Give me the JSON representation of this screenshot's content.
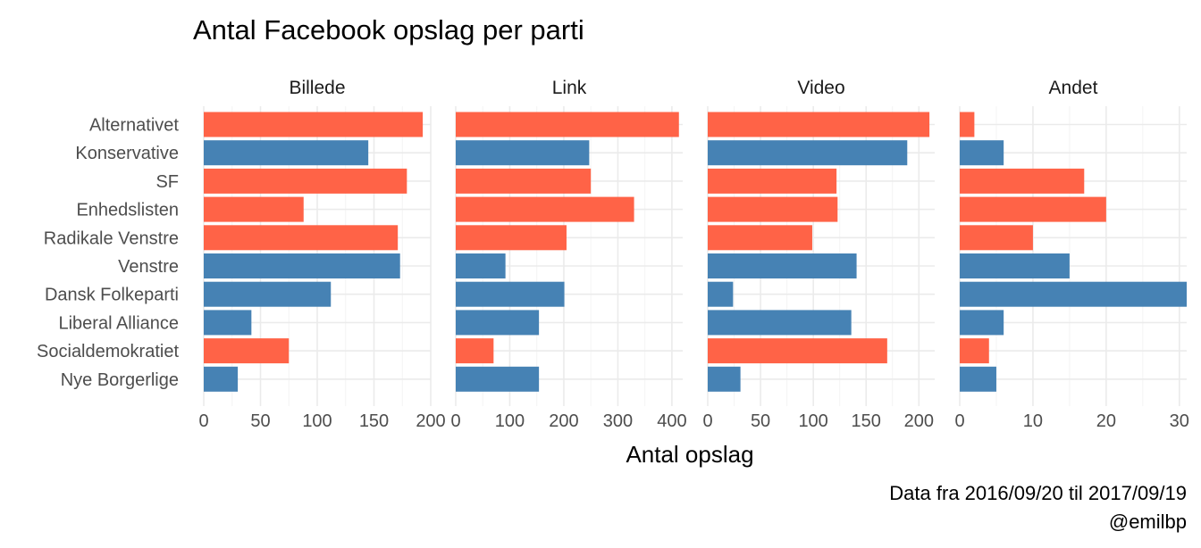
{
  "chart_data": {
    "type": "bar",
    "orientation": "horizontal",
    "title": "Antal Facebook opslag per parti",
    "xlabel": "Antal opslag",
    "ylabel": "",
    "caption": [
      "Data fra 2016/09/20 til 2017/09/19",
      "@emilbp"
    ],
    "categories": [
      "Alternativet",
      "Konservative",
      "SF",
      "Enhedslisten",
      "Radikale Venstre",
      "Venstre",
      "Dansk Folkeparti",
      "Liberal Alliance",
      "Socialdemokratiet",
      "Nye Borgerlige"
    ],
    "bar_group": [
      "opposition",
      "government",
      "opposition",
      "opposition",
      "opposition",
      "government",
      "government",
      "government",
      "opposition",
      "government"
    ],
    "colors": {
      "opposition": "#ff6347",
      "government": "#4682b4"
    },
    "grid": true,
    "legend": "none",
    "facets": [
      {
        "name": "Billede",
        "xlim": [
          0,
          200
        ],
        "ticks": [
          0,
          50,
          100,
          150,
          200
        ],
        "values": [
          193,
          145,
          179,
          88,
          171,
          173,
          112,
          42,
          75,
          30
        ]
      },
      {
        "name": "Link",
        "xlim": [
          0,
          420
        ],
        "ticks": [
          0,
          100,
          200,
          300,
          400
        ],
        "values": [
          413,
          247,
          250,
          330,
          205,
          92,
          201,
          154,
          70,
          154
        ]
      },
      {
        "name": "Video",
        "xlim": [
          0,
          215
        ],
        "ticks": [
          0,
          50,
          100,
          150,
          200
        ],
        "values": [
          210,
          189,
          122,
          123,
          99,
          141,
          24,
          136,
          170,
          31
        ]
      },
      {
        "name": "Andet",
        "xlim": [
          0,
          31
        ],
        "ticks": [
          0,
          10,
          20,
          30
        ],
        "values": [
          2,
          6,
          17,
          20,
          10,
          15,
          31,
          6,
          4,
          5
        ]
      }
    ]
  }
}
